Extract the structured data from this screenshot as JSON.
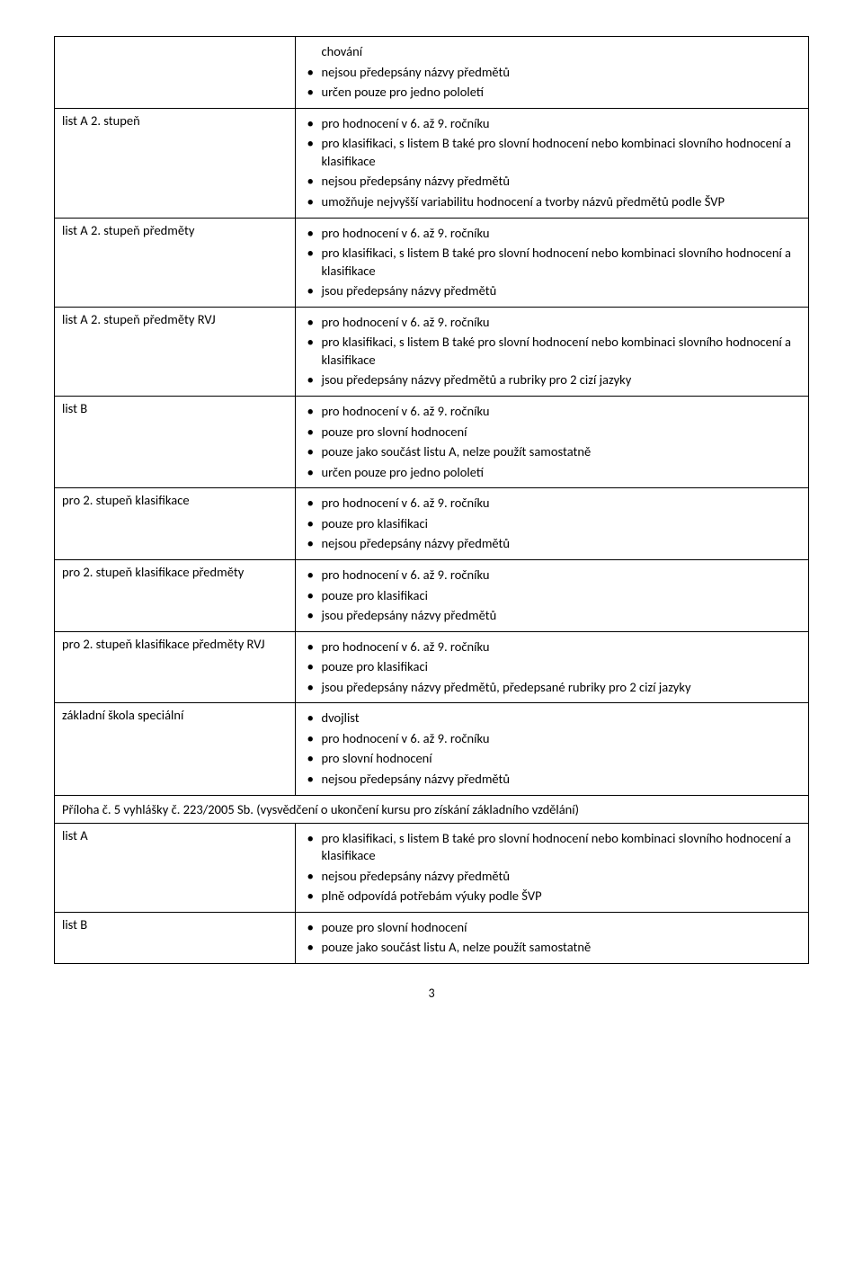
{
  "rows": [
    {
      "left": "",
      "items": [
        {
          "text": "chování",
          "bullet": false
        },
        {
          "text": "nejsou předepsány názvy předmětů",
          "bullet": true
        },
        {
          "text": "určen pouze pro jedno pololetí",
          "bullet": true
        }
      ]
    },
    {
      "left": "list A 2. stupeň",
      "items": [
        {
          "text": "pro hodnocení v 6. až 9. ročníku",
          "bullet": true
        },
        {
          "text": "pro klasifikaci, s listem B také pro slovní hodnocení nebo kombinaci slovního hodnocení a klasifikace",
          "bullet": true
        },
        {
          "text": "nejsou předepsány názvy předmětů",
          "bullet": true
        },
        {
          "text": "umožňuje nejvyšší variabilitu hodnocení a tvorby názvů předmětů podle ŠVP",
          "bullet": true
        }
      ]
    },
    {
      "left": "list A 2. stupeň předměty",
      "items": [
        {
          "text": "pro hodnocení v 6. až 9. ročníku",
          "bullet": true
        },
        {
          "text": "pro klasifikaci, s listem B také pro slovní hodnocení nebo kombinaci slovního hodnocení a klasifikace",
          "bullet": true
        },
        {
          "text": "jsou předepsány názvy předmětů",
          "bullet": true
        }
      ]
    },
    {
      "left": "list A 2. stupeň předměty RVJ",
      "items": [
        {
          "text": "pro hodnocení v 6. až 9. ročníku",
          "bullet": true
        },
        {
          "text": "pro klasifikaci, s listem B také pro slovní hodnocení nebo kombinaci slovního hodnocení a klasifikace",
          "bullet": true
        },
        {
          "text": "jsou předepsány názvy předmětů a rubriky pro 2 cizí jazyky",
          "bullet": true
        }
      ]
    },
    {
      "left": "list B",
      "items": [
        {
          "text": "pro hodnocení v 6. až 9. ročníku",
          "bullet": true
        },
        {
          "text": "pouze pro slovní hodnocení",
          "bullet": true
        },
        {
          "text": "pouze jako součást listu A, nelze použít samostatně",
          "bullet": true
        },
        {
          "text": "určen pouze pro jedno pololetí",
          "bullet": true
        }
      ]
    },
    {
      "left": "pro 2. stupeň klasifikace",
      "items": [
        {
          "text": "pro hodnocení v 6. až 9. ročníku",
          "bullet": true
        },
        {
          "text": "pouze pro klasifikaci",
          "bullet": true
        },
        {
          "text": "nejsou předepsány názvy předmětů",
          "bullet": true
        }
      ]
    },
    {
      "left": "pro 2. stupeň klasifikace předměty",
      "items": [
        {
          "text": "pro hodnocení v 6. až 9. ročníku",
          "bullet": true
        },
        {
          "text": "pouze pro klasifikaci",
          "bullet": true
        },
        {
          "text": "jsou předepsány názvy předmětů",
          "bullet": true
        }
      ]
    },
    {
      "left": "pro 2. stupeň klasifikace předměty RVJ",
      "items": [
        {
          "text": "pro hodnocení v 6. až 9. ročníku",
          "bullet": true
        },
        {
          "text": "pouze pro klasifikaci",
          "bullet": true
        },
        {
          "text": "jsou předepsány názvy předmětů, předepsané rubriky pro 2 cizí jazyky",
          "bullet": true
        }
      ]
    },
    {
      "left": "základní škola speciální",
      "items": [
        {
          "text": "dvojlist",
          "bullet": true
        },
        {
          "text": "pro hodnocení v 6. až 9. ročníku",
          "bullet": true
        },
        {
          "text": "pro slovní hodnocení",
          "bullet": true
        },
        {
          "text": "nejsou předepsány názvy předmětů",
          "bullet": true
        }
      ]
    }
  ],
  "section_heading": "Příloha č. 5 vyhlášky č. 223/2005 Sb. (vysvědčení o ukončení kursu pro získání základního vzdělání)",
  "rows2": [
    {
      "left": "list A",
      "items": [
        {
          "text": "pro klasifikaci, s listem B také pro slovní hodnocení nebo kombinaci slovního hodnocení a klasifikace",
          "bullet": true
        },
        {
          "text": "nejsou předepsány názvy předmětů",
          "bullet": true
        },
        {
          "text": "plně odpovídá potřebám výuky podle ŠVP",
          "bullet": true
        }
      ]
    },
    {
      "left": "list B",
      "items": [
        {
          "text": "pouze pro slovní hodnocení",
          "bullet": true
        },
        {
          "text": "pouze jako součást listu A, nelze použít samostatně",
          "bullet": true
        }
      ]
    }
  ],
  "page_number": "3"
}
